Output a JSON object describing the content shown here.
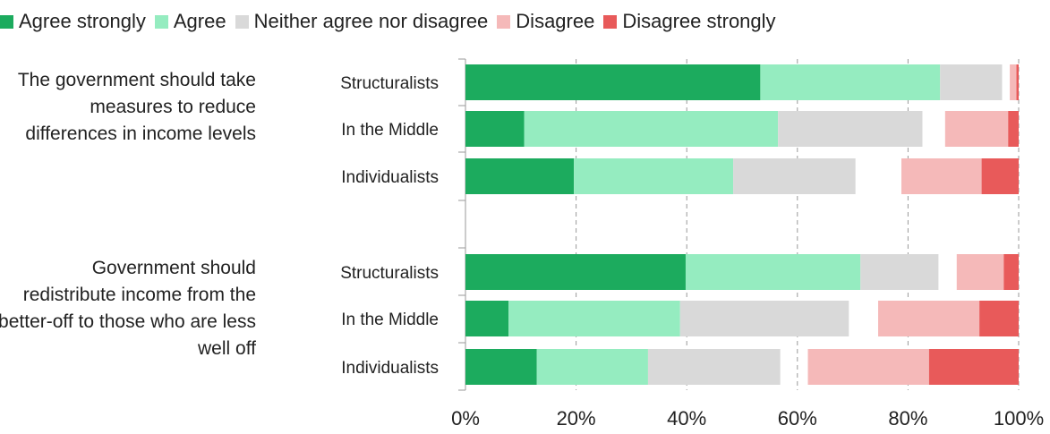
{
  "chart_data": {
    "type": "bar",
    "orientation": "horizontal",
    "stacked": true,
    "legend": {
      "placement": "top",
      "entries": [
        {
          "name": "Agree strongly",
          "color": "#1cab5e"
        },
        {
          "name": "Agree",
          "color": "#95ecc0"
        },
        {
          "name": "Neither agree nor disagree",
          "color": "#d9d9d9"
        },
        {
          "name": "Disagree",
          "color": "#f5b9b9"
        },
        {
          "name": "Disagree strongly",
          "color": "#e85a5a"
        }
      ]
    },
    "x_ticks": [
      "0%",
      "20%",
      "40%",
      "60%",
      "80%",
      "100%"
    ],
    "xlim": [
      0,
      100
    ],
    "grid": "vertical dashed",
    "groups": [
      {
        "question": "The government should take measures to reduce differences in income levels",
        "categories": [
          "Structuralists",
          "In the Middle",
          "Individualists"
        ],
        "segments": [
          [
            {
              "key": "agree_strongly",
              "start": 0,
              "end": 53.3
            },
            {
              "key": "agree",
              "start": 53.3,
              "end": 85.8
            },
            {
              "key": "neither",
              "start": 85.8,
              "end": 97.0
            },
            {
              "key": "disagree",
              "start": 98.4,
              "end": 99.6
            },
            {
              "key": "disagree_strongly",
              "start": 99.6,
              "end": 100
            }
          ],
          [
            {
              "key": "agree_strongly",
              "start": 0,
              "end": 10.6
            },
            {
              "key": "agree",
              "start": 10.6,
              "end": 56.5
            },
            {
              "key": "neither",
              "start": 56.5,
              "end": 82.6
            },
            {
              "key": "disagree",
              "start": 86.7,
              "end": 98.1
            },
            {
              "key": "disagree_strongly",
              "start": 98.1,
              "end": 100
            }
          ],
          [
            {
              "key": "agree_strongly",
              "start": 0,
              "end": 19.6
            },
            {
              "key": "agree",
              "start": 19.6,
              "end": 48.4
            },
            {
              "key": "neither",
              "start": 48.4,
              "end": 70.5
            },
            {
              "key": "disagree",
              "start": 78.8,
              "end": 93.3
            },
            {
              "key": "disagree_strongly",
              "start": 93.3,
              "end": 100
            }
          ]
        ]
      },
      {
        "question": "Government should redistribute income from the better-off to those who are less well off",
        "categories": [
          "Structuralists",
          "In the Middle",
          "Individualists"
        ],
        "segments": [
          [
            {
              "key": "agree_strongly",
              "start": 0,
              "end": 39.8
            },
            {
              "key": "agree",
              "start": 39.8,
              "end": 71.4
            },
            {
              "key": "neither",
              "start": 71.4,
              "end": 85.5
            },
            {
              "key": "disagree",
              "start": 88.8,
              "end": 97.3
            },
            {
              "key": "disagree_strongly",
              "start": 97.3,
              "end": 100
            }
          ],
          [
            {
              "key": "agree_strongly",
              "start": 0,
              "end": 7.8
            },
            {
              "key": "agree",
              "start": 7.8,
              "end": 38.8
            },
            {
              "key": "neither",
              "start": 38.8,
              "end": 69.3
            },
            {
              "key": "disagree",
              "start": 74.6,
              "end": 92.9
            },
            {
              "key": "disagree_strongly",
              "start": 92.9,
              "end": 100
            }
          ],
          [
            {
              "key": "agree_strongly",
              "start": 0,
              "end": 12.9
            },
            {
              "key": "agree",
              "start": 12.9,
              "end": 33.0
            },
            {
              "key": "neither",
              "start": 33.0,
              "end": 56.9
            },
            {
              "key": "disagree",
              "start": 61.9,
              "end": 83.8
            },
            {
              "key": "disagree_strongly",
              "start": 83.8,
              "end": 100
            }
          ]
        ]
      }
    ]
  }
}
